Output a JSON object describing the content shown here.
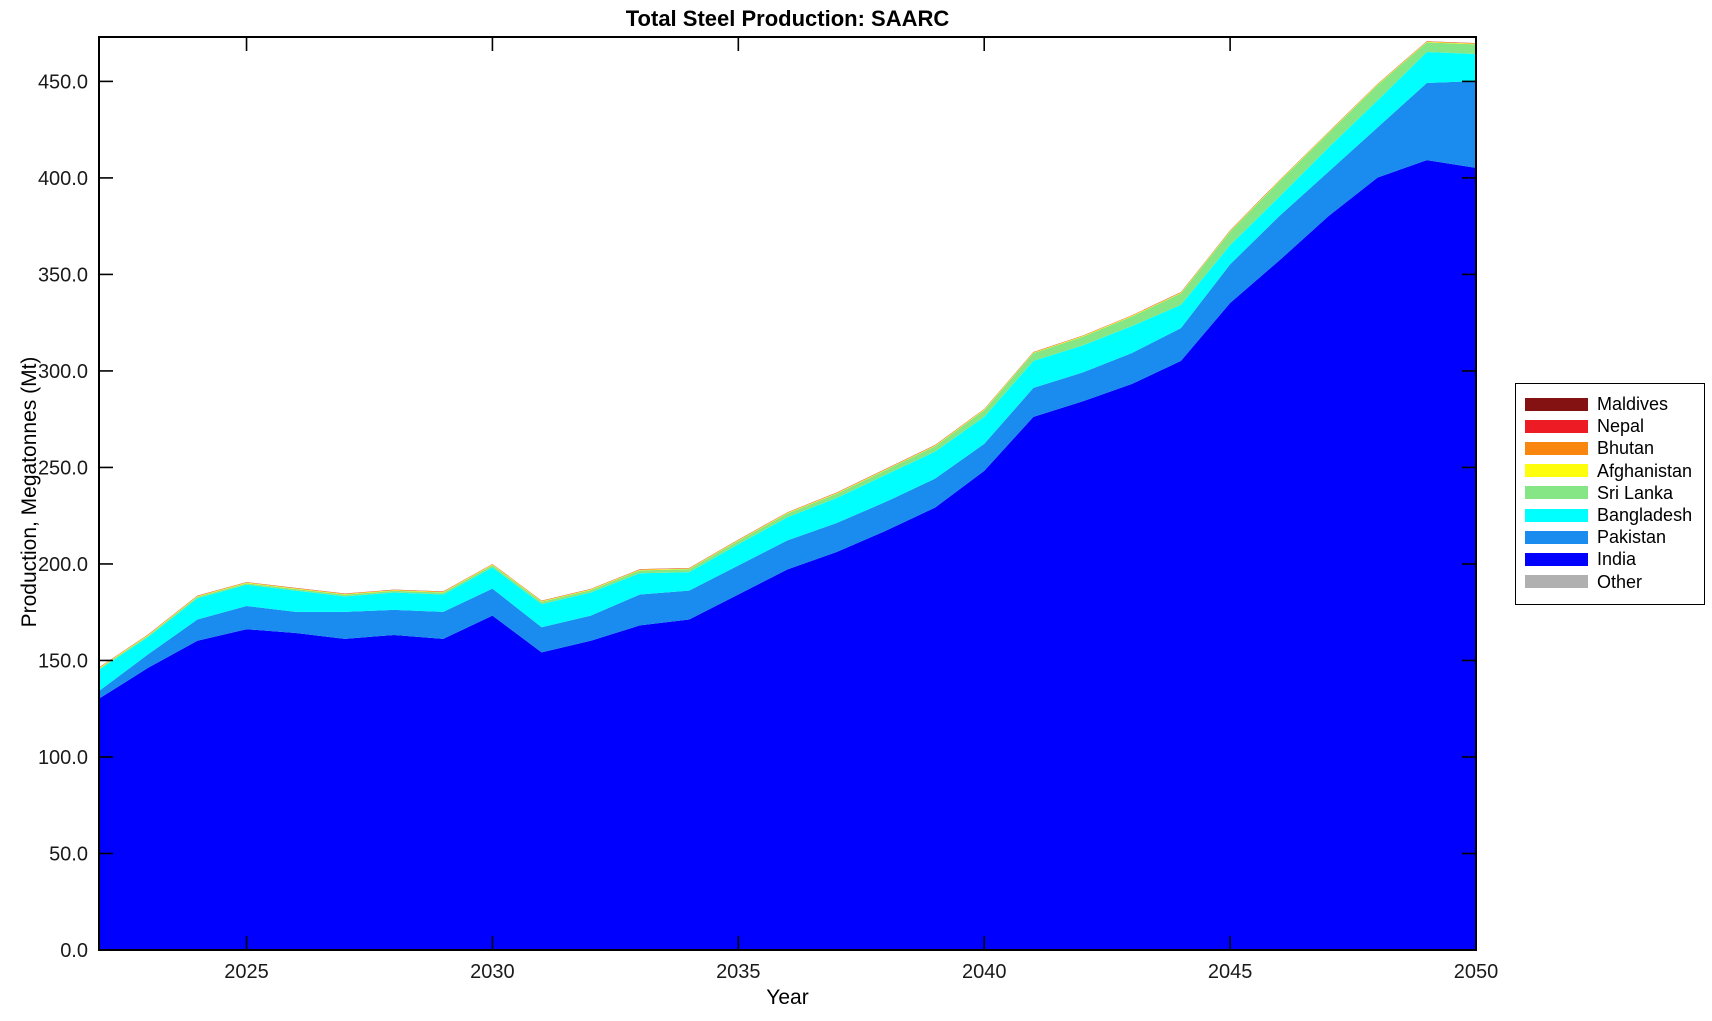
{
  "title": "Total Steel Production: SAARC",
  "xlabel": "Year",
  "ylabel": "Production, Megatonnes (Mt)",
  "axes": {
    "x_ticks": [
      2025,
      2030,
      2035,
      2040,
      2045,
      2050
    ],
    "x_tick_labels": [
      "2025",
      "2030",
      "2035",
      "2040",
      "2045",
      "2050"
    ],
    "y_ticks": [
      0,
      50,
      100,
      150,
      200,
      250,
      300,
      350,
      400,
      450
    ],
    "y_tick_labels": [
      "0.0",
      "50.0",
      "100.0",
      "150.0",
      "200.0",
      "250.0",
      "300.0",
      "350.0",
      "400.0",
      "450.0"
    ],
    "xlim": [
      2022,
      2050
    ],
    "ylim": [
      0,
      473
    ],
    "grid": false,
    "box": true,
    "tick_direction": "in"
  },
  "legend": {
    "position": "right-outside",
    "items": [
      {
        "label": "Maldives",
        "color": "#841212"
      },
      {
        "label": "Nepal",
        "color": "#ED1B23"
      },
      {
        "label": "Bhutan",
        "color": "#F9870F"
      },
      {
        "label": "Afghanistan",
        "color": "#FDFD0C"
      },
      {
        "label": "Sri Lanka",
        "color": "#86E686"
      },
      {
        "label": "Bangladesh",
        "color": "#00FFFF"
      },
      {
        "label": "Pakistan",
        "color": "#1A8CF0"
      },
      {
        "label": "India",
        "color": "#0000FE"
      },
      {
        "label": "Other",
        "color": "#B0B0B0"
      }
    ]
  },
  "chart_data": {
    "type": "area",
    "stacked": true,
    "title": "Total Steel Production: SAARC",
    "xlabel": "Year",
    "ylabel": "Production, Megatonnes (Mt)",
    "xlim": [
      2022,
      2050
    ],
    "ylim": [
      0,
      473
    ],
    "x": [
      2022,
      2023,
      2024,
      2025,
      2026,
      2027,
      2028,
      2029,
      2030,
      2031,
      2032,
      2033,
      2034,
      2035,
      2036,
      2037,
      2038,
      2039,
      2040,
      2041,
      2042,
      2043,
      2044,
      2045,
      2046,
      2047,
      2048,
      2049,
      2050
    ],
    "series": [
      {
        "name": "Other",
        "color": "#B0B0B0",
        "values": [
          0.2,
          0.2,
          0.2,
          0.2,
          0.2,
          0.2,
          0.2,
          0.2,
          0.2,
          0.2,
          0.2,
          0.2,
          0.2,
          0.2,
          0.2,
          0.2,
          0.2,
          0.2,
          0.2,
          0.2,
          0.2,
          0.2,
          0.2,
          0.2,
          0.2,
          0.2,
          0.2,
          0.2,
          0.2
        ]
      },
      {
        "name": "India",
        "color": "#0000FE",
        "values": [
          130,
          146,
          160,
          166,
          164,
          161,
          163,
          161,
          173,
          154,
          160,
          168,
          171,
          184,
          197,
          206,
          217,
          229,
          248,
          276,
          284,
          293,
          305,
          335,
          357,
          380,
          400,
          409,
          405
        ]
      },
      {
        "name": "Pakistan",
        "color": "#1A8CF0",
        "values": [
          4,
          7,
          11,
          12,
          11,
          14,
          13,
          14,
          14,
          13,
          13,
          16,
          15,
          15,
          15,
          15,
          15,
          15,
          14,
          15,
          15,
          16,
          17,
          20,
          23,
          23,
          26,
          40,
          45
        ]
      },
      {
        "name": "Bangladesh",
        "color": "#00FFFF",
        "values": [
          11,
          9,
          11,
          11,
          11,
          8,
          9,
          9,
          11,
          12,
          12,
          11,
          9.5,
          11,
          12,
          13,
          14,
          14,
          14,
          14,
          14,
          14,
          12,
          10,
          10,
          12.5,
          14,
          16,
          14
        ]
      },
      {
        "name": "Sri Lanka",
        "color": "#86E686",
        "values": [
          0.6,
          0.7,
          0.8,
          0.8,
          0.8,
          0.9,
          0.9,
          1,
          1.2,
          1.2,
          1.3,
          1.5,
          1.6,
          1.8,
          2,
          2.2,
          2.5,
          2.8,
          3.5,
          4,
          4.5,
          5,
          6,
          7,
          8,
          7.5,
          8,
          5,
          5
        ]
      },
      {
        "name": "Afghanistan",
        "color": "#FDFD0C",
        "values": [
          0.3,
          0.3,
          0.3,
          0.3,
          0.3,
          0.3,
          0.3,
          0.3,
          0.3,
          0.3,
          0.3,
          0.3,
          0.3,
          0.3,
          0.3,
          0.3,
          0.3,
          0.3,
          0.3,
          0.3,
          0.3,
          0.3,
          0.3,
          0.3,
          0.3,
          0.3,
          0.3,
          0.3,
          0.3
        ]
      },
      {
        "name": "Bhutan",
        "color": "#F9870F",
        "values": [
          0.15,
          0.15,
          0.15,
          0.15,
          0.15,
          0.15,
          0.15,
          0.15,
          0.15,
          0.15,
          0.15,
          0.15,
          0.15,
          0.15,
          0.15,
          0.15,
          0.15,
          0.15,
          0.15,
          0.15,
          0.15,
          0.15,
          0.15,
          0.15,
          0.15,
          0.15,
          0.15,
          0.15,
          0.15
        ]
      },
      {
        "name": "Nepal",
        "color": "#ED1B23",
        "values": [
          0.1,
          0.1,
          0.1,
          0.1,
          0.1,
          0.1,
          0.1,
          0.1,
          0.1,
          0.1,
          0.1,
          0.1,
          0.1,
          0.1,
          0.1,
          0.1,
          0.1,
          0.1,
          0.1,
          0.1,
          0.1,
          0.1,
          0.1,
          0.1,
          0.1,
          0.1,
          0.1,
          0.1,
          0.1
        ]
      },
      {
        "name": "Maldives",
        "color": "#841212",
        "values": [
          0.05,
          0.05,
          0.05,
          0.05,
          0.05,
          0.05,
          0.05,
          0.05,
          0.05,
          0.05,
          0.05,
          0.05,
          0.05,
          0.05,
          0.05,
          0.05,
          0.05,
          0.05,
          0.05,
          0.05,
          0.05,
          0.05,
          0.05,
          0.05,
          0.05,
          0.05,
          0.05,
          0.05,
          0.05
        ]
      }
    ],
    "legend_entries_top_to_bottom": [
      "Maldives",
      "Nepal",
      "Bhutan",
      "Afghanistan",
      "Sri Lanka",
      "Bangladesh",
      "Pakistan",
      "India",
      "Other"
    ]
  }
}
